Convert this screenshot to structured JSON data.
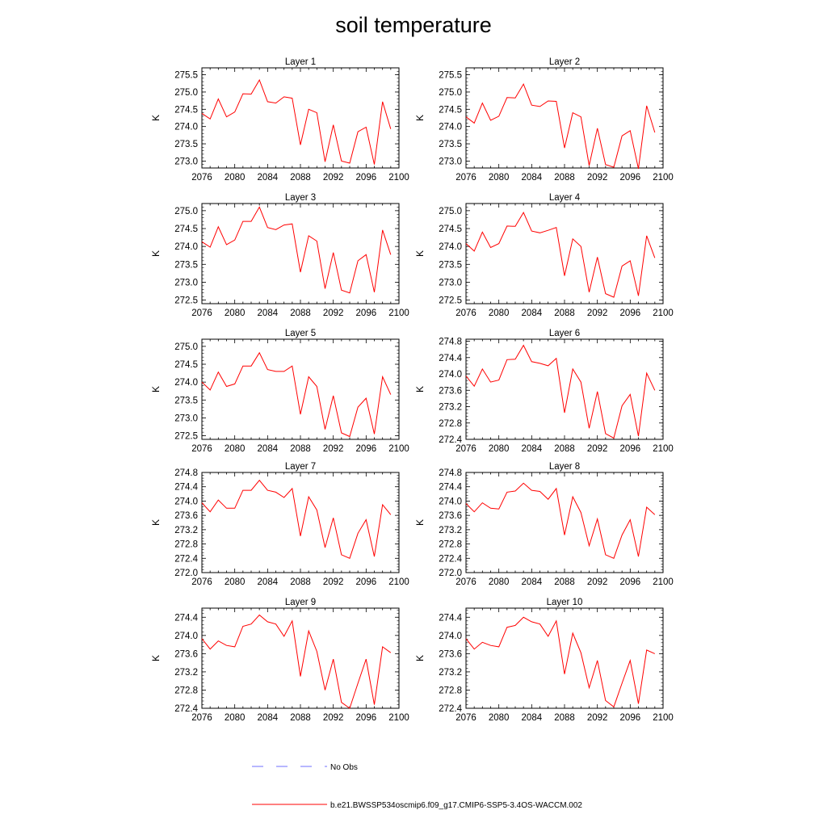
{
  "figure": {
    "title": "soil temperature",
    "series_color": "#ff0000",
    "obs_color": "#6f6fff",
    "legend": [
      {
        "label": "No Obs",
        "style": "dashed"
      },
      {
        "label": "b.e21.BWSSP534oscmip6.f09_g17.CMIP6-SSP5-3.4OS-WACCM.002",
        "style": "solid"
      }
    ]
  },
  "chart_data": [
    {
      "type": "line",
      "title": "Layer 1",
      "ylabel": "K",
      "x": [
        2076,
        2077,
        2078,
        2079,
        2080,
        2081,
        2082,
        2083,
        2084,
        2085,
        2086,
        2087,
        2088,
        2089,
        2090,
        2091,
        2092,
        2093,
        2094,
        2095,
        2096,
        2097,
        2098,
        2099
      ],
      "series": [
        {
          "name": "b.e21.BWSSP534oscmip6.f09_g17.CMIP6-SSP5-3.4OS-WACCM.002",
          "values": [
            274.38,
            274.22,
            274.8,
            274.28,
            274.42,
            274.95,
            274.94,
            275.35,
            274.72,
            274.68,
            274.86,
            274.82,
            273.47,
            274.5,
            274.4,
            272.98,
            274.05,
            273.0,
            272.94,
            273.85,
            273.98,
            272.9,
            274.72,
            273.93
          ]
        }
      ],
      "xlim": [
        2076,
        2100
      ],
      "ylim": [
        272.8,
        275.7
      ],
      "xticks": [
        "2076",
        "2080",
        "2084",
        "2088",
        "2092",
        "2096",
        "2100"
      ],
      "yticks": [
        273.0,
        273.5,
        274.0,
        274.5,
        275.0,
        275.5
      ],
      "ydec": 1
    },
    {
      "type": "line",
      "title": "Layer 2",
      "ylabel": "K",
      "x": [
        2076,
        2077,
        2078,
        2079,
        2080,
        2081,
        2082,
        2083,
        2084,
        2085,
        2086,
        2087,
        2088,
        2089,
        2090,
        2091,
        2092,
        2093,
        2094,
        2095,
        2096,
        2097,
        2098,
        2099
      ],
      "series": [
        {
          "name": "b.e21.BWSSP534oscmip6.f09_g17.CMIP6-SSP5-3.4OS-WACCM.002",
          "values": [
            274.28,
            274.1,
            274.68,
            274.18,
            274.3,
            274.84,
            274.83,
            275.23,
            274.62,
            274.58,
            274.74,
            274.73,
            273.38,
            274.4,
            274.28,
            272.87,
            273.95,
            272.9,
            272.82,
            273.73,
            273.88,
            272.78,
            274.6,
            273.83
          ]
        }
      ],
      "xlim": [
        2076,
        2100
      ],
      "ylim": [
        272.8,
        275.7
      ],
      "xticks": [
        "2076",
        "2080",
        "2084",
        "2088",
        "2092",
        "2096",
        "2100"
      ],
      "yticks": [
        273.0,
        273.5,
        274.0,
        274.5,
        275.0,
        275.5
      ],
      "ydec": 1
    },
    {
      "type": "line",
      "title": "Layer 3",
      "ylabel": "K",
      "x": [
        2076,
        2077,
        2078,
        2079,
        2080,
        2081,
        2082,
        2083,
        2084,
        2085,
        2086,
        2087,
        2088,
        2089,
        2090,
        2091,
        2092,
        2093,
        2094,
        2095,
        2096,
        2097,
        2098,
        2099
      ],
      "series": [
        {
          "name": "b.e21.BWSSP534oscmip6.f09_g17.CMIP6-SSP5-3.4OS-WACCM.002",
          "values": [
            274.13,
            273.98,
            274.55,
            274.05,
            274.18,
            274.7,
            274.7,
            275.1,
            274.53,
            274.47,
            274.6,
            274.63,
            273.28,
            274.3,
            274.15,
            272.82,
            273.83,
            272.78,
            272.7,
            273.6,
            273.77,
            272.72,
            274.46,
            273.77
          ]
        }
      ],
      "xlim": [
        2076,
        2100
      ],
      "ylim": [
        272.4,
        275.2
      ],
      "xticks": [
        "2076",
        "2080",
        "2084",
        "2088",
        "2092",
        "2096",
        "2100"
      ],
      "yticks": [
        272.5,
        273.0,
        273.5,
        274.0,
        274.5,
        275.0
      ],
      "ydec": 1
    },
    {
      "type": "line",
      "title": "Layer 4",
      "ylabel": "K",
      "x": [
        2076,
        2077,
        2078,
        2079,
        2080,
        2081,
        2082,
        2083,
        2084,
        2085,
        2086,
        2087,
        2088,
        2089,
        2090,
        2091,
        2092,
        2093,
        2094,
        2095,
        2096,
        2097,
        2098,
        2099
      ],
      "series": [
        {
          "name": "b.e21.BWSSP534oscmip6.f09_g17.CMIP6-SSP5-3.4OS-WACCM.002",
          "values": [
            274.08,
            273.87,
            274.4,
            273.97,
            274.08,
            274.57,
            274.56,
            274.95,
            274.43,
            274.38,
            274.45,
            274.53,
            273.18,
            274.21,
            274.0,
            272.72,
            273.7,
            272.68,
            272.58,
            273.45,
            273.6,
            272.62,
            274.3,
            273.68
          ]
        }
      ],
      "xlim": [
        2076,
        2100
      ],
      "ylim": [
        272.4,
        275.2
      ],
      "xticks": [
        "2076",
        "2080",
        "2084",
        "2088",
        "2092",
        "2096",
        "2100"
      ],
      "yticks": [
        272.5,
        273.0,
        273.5,
        274.0,
        274.5,
        275.0
      ],
      "ydec": 1
    },
    {
      "type": "line",
      "title": "Layer 5",
      "ylabel": "K",
      "x": [
        2076,
        2077,
        2078,
        2079,
        2080,
        2081,
        2082,
        2083,
        2084,
        2085,
        2086,
        2087,
        2088,
        2089,
        2090,
        2091,
        2092,
        2093,
        2094,
        2095,
        2096,
        2097,
        2098,
        2099
      ],
      "series": [
        {
          "name": "b.e21.BWSSP534oscmip6.f09_g17.CMIP6-SSP5-3.4OS-WACCM.002",
          "values": [
            274.0,
            273.78,
            274.28,
            273.88,
            273.95,
            274.45,
            274.45,
            274.82,
            274.35,
            274.3,
            274.3,
            274.45,
            273.1,
            274.15,
            273.88,
            272.68,
            273.62,
            272.58,
            272.48,
            273.3,
            273.55,
            272.55,
            274.15,
            273.65
          ]
        }
      ],
      "xlim": [
        2076,
        2100
      ],
      "ylim": [
        272.4,
        275.2
      ],
      "xticks": [
        "2076",
        "2080",
        "2084",
        "2088",
        "2092",
        "2096",
        "2100"
      ],
      "yticks": [
        272.5,
        273.0,
        273.5,
        274.0,
        274.5,
        275.0
      ],
      "ydec": 1
    },
    {
      "type": "line",
      "title": "Layer 6",
      "ylabel": "K",
      "x": [
        2076,
        2077,
        2078,
        2079,
        2080,
        2081,
        2082,
        2083,
        2084,
        2085,
        2086,
        2087,
        2088,
        2089,
        2090,
        2091,
        2092,
        2093,
        2094,
        2095,
        2096,
        2097,
        2098,
        2099
      ],
      "series": [
        {
          "name": "b.e21.BWSSP534oscmip6.f09_g17.CMIP6-SSP5-3.4OS-WACCM.002",
          "values": [
            273.95,
            273.7,
            274.12,
            273.8,
            273.85,
            274.35,
            274.36,
            274.7,
            274.3,
            274.26,
            274.2,
            274.38,
            273.05,
            274.12,
            273.8,
            272.67,
            273.57,
            272.54,
            272.43,
            273.22,
            273.5,
            272.48,
            274.02,
            273.6
          ]
        }
      ],
      "xlim": [
        2076,
        2100
      ],
      "ylim": [
        272.4,
        274.85
      ],
      "xticks": [
        "2076",
        "2080",
        "2084",
        "2088",
        "2092",
        "2096",
        "2100"
      ],
      "yticks": [
        272.4,
        272.8,
        273.2,
        273.6,
        274.0,
        274.4,
        274.8
      ],
      "ydec": 1
    },
    {
      "type": "line",
      "title": "Layer 7",
      "ylabel": "K",
      "x": [
        2076,
        2077,
        2078,
        2079,
        2080,
        2081,
        2082,
        2083,
        2084,
        2085,
        2086,
        2087,
        2088,
        2089,
        2090,
        2091,
        2092,
        2093,
        2094,
        2095,
        2096,
        2097,
        2098,
        2099
      ],
      "series": [
        {
          "name": "b.e21.BWSSP534oscmip6.f09_g17.CMIP6-SSP5-3.4OS-WACCM.002",
          "values": [
            273.95,
            273.7,
            274.03,
            273.8,
            273.8,
            274.3,
            274.3,
            274.58,
            274.3,
            274.25,
            274.1,
            274.35,
            273.02,
            274.12,
            273.75,
            272.7,
            273.53,
            272.5,
            272.4,
            273.1,
            273.48,
            272.45,
            273.9,
            273.62
          ]
        }
      ],
      "xlim": [
        2076,
        2100
      ],
      "ylim": [
        272.0,
        274.8
      ],
      "xticks": [
        "2076",
        "2080",
        "2084",
        "2088",
        "2092",
        "2096",
        "2100"
      ],
      "yticks": [
        272.0,
        272.4,
        272.8,
        273.2,
        273.6,
        274.0,
        274.4,
        274.8
      ],
      "ydec": 1
    },
    {
      "type": "line",
      "title": "Layer 8",
      "ylabel": "K",
      "x": [
        2076,
        2077,
        2078,
        2079,
        2080,
        2081,
        2082,
        2083,
        2084,
        2085,
        2086,
        2087,
        2088,
        2089,
        2090,
        2091,
        2092,
        2093,
        2094,
        2095,
        2096,
        2097,
        2098,
        2099
      ],
      "series": [
        {
          "name": "b.e21.BWSSP534oscmip6.f09_g17.CMIP6-SSP5-3.4OS-WACCM.002",
          "values": [
            273.93,
            273.7,
            273.95,
            273.8,
            273.78,
            274.25,
            274.28,
            274.5,
            274.3,
            274.27,
            274.05,
            274.35,
            273.05,
            274.12,
            273.68,
            272.75,
            273.5,
            272.5,
            272.4,
            273.05,
            273.48,
            272.45,
            273.83,
            273.62
          ]
        }
      ],
      "xlim": [
        2076,
        2100
      ],
      "ylim": [
        272.0,
        274.8
      ],
      "xticks": [
        "2076",
        "2080",
        "2084",
        "2088",
        "2092",
        "2096",
        "2100"
      ],
      "yticks": [
        272.0,
        272.4,
        272.8,
        273.2,
        273.6,
        274.0,
        274.4,
        274.8
      ],
      "ydec": 1
    },
    {
      "type": "line",
      "title": "Layer 9",
      "ylabel": "K",
      "x": [
        2076,
        2077,
        2078,
        2079,
        2080,
        2081,
        2082,
        2083,
        2084,
        2085,
        2086,
        2087,
        2088,
        2089,
        2090,
        2091,
        2092,
        2093,
        2094,
        2095,
        2096,
        2097,
        2098,
        2099
      ],
      "series": [
        {
          "name": "b.e21.BWSSP534oscmip6.f09_g17.CMIP6-SSP5-3.4OS-WACCM.002",
          "values": [
            273.93,
            273.7,
            273.88,
            273.78,
            273.75,
            274.2,
            274.25,
            274.45,
            274.3,
            274.25,
            273.98,
            274.32,
            273.1,
            274.1,
            273.65,
            272.8,
            273.48,
            272.53,
            272.4,
            272.95,
            273.48,
            272.48,
            273.75,
            273.62
          ]
        }
      ],
      "xlim": [
        2076,
        2100
      ],
      "ylim": [
        272.4,
        274.6
      ],
      "xticks": [
        "2076",
        "2080",
        "2084",
        "2088",
        "2092",
        "2096",
        "2100"
      ],
      "yticks": [
        272.4,
        272.8,
        273.2,
        273.6,
        274.0,
        274.4
      ],
      "ydec": 1
    },
    {
      "type": "line",
      "title": "Layer 10",
      "ylabel": "K",
      "x": [
        2076,
        2077,
        2078,
        2079,
        2080,
        2081,
        2082,
        2083,
        2084,
        2085,
        2086,
        2087,
        2088,
        2089,
        2090,
        2091,
        2092,
        2093,
        2094,
        2095,
        2096,
        2097,
        2098,
        2099
      ],
      "series": [
        {
          "name": "b.e21.BWSSP534oscmip6.f09_g17.CMIP6-SSP5-3.4OS-WACCM.002",
          "values": [
            273.93,
            273.7,
            273.85,
            273.78,
            273.75,
            274.18,
            274.22,
            274.4,
            274.3,
            274.25,
            273.98,
            274.32,
            273.15,
            274.05,
            273.62,
            272.85,
            273.45,
            272.57,
            272.43,
            272.95,
            273.45,
            272.5,
            273.68,
            273.6
          ]
        }
      ],
      "xlim": [
        2076,
        2100
      ],
      "ylim": [
        272.4,
        274.6
      ],
      "xticks": [
        "2076",
        "2080",
        "2084",
        "2088",
        "2092",
        "2096",
        "2100"
      ],
      "yticks": [
        272.4,
        272.8,
        273.2,
        273.6,
        274.0,
        274.4
      ],
      "ydec": 1
    }
  ]
}
